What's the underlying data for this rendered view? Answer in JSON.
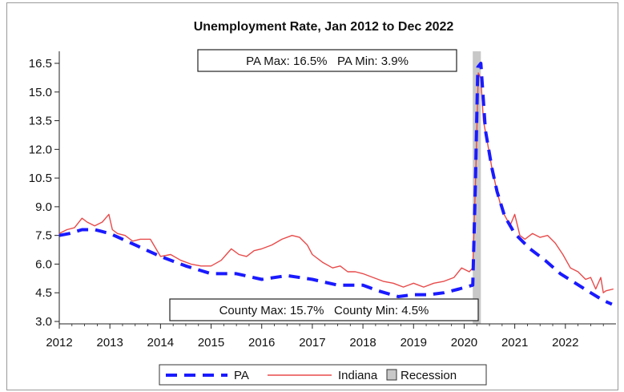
{
  "chart_data": {
    "type": "line",
    "title": "Unemployment Rate, Jan 2012 to Dec 2022",
    "xlabel": "",
    "ylabel": "",
    "xlim": [
      2012,
      2022.95
    ],
    "ylim": [
      3.0,
      16.5
    ],
    "x_ticks": [
      "2012",
      "2013",
      "2014",
      "2015",
      "2016",
      "2017",
      "2018",
      "2019",
      "2020",
      "2021",
      "2022"
    ],
    "y_ticks": [
      "3.0",
      "4.5",
      "6.0",
      "7.5",
      "9.0",
      "10.5",
      "12.0",
      "13.5",
      "15.0",
      "16.5"
    ],
    "grid": false,
    "legend_position": "bottom",
    "series": [
      {
        "name": "PA",
        "style": "dashed",
        "color": "#1a1aff",
        "x": [
          2012.0,
          2012.2,
          2012.45,
          2012.7,
          2013.0,
          2013.5,
          2014.0,
          2014.5,
          2015.0,
          2015.5,
          2016.0,
          2016.5,
          2017.0,
          2017.5,
          2018.0,
          2018.3,
          2018.7,
          2019.0,
          2019.3,
          2019.6,
          2019.9,
          2020.17,
          2020.22,
          2020.27,
          2020.33,
          2020.42,
          2020.55,
          2020.65,
          2020.8,
          2021.0,
          2021.3,
          2021.6,
          2021.9,
          2022.2,
          2022.5,
          2022.75,
          2022.92
        ],
        "y": [
          7.5,
          7.6,
          7.8,
          7.8,
          7.6,
          7.0,
          6.4,
          5.9,
          5.5,
          5.5,
          5.2,
          5.4,
          5.2,
          4.9,
          4.9,
          4.6,
          4.3,
          4.4,
          4.4,
          4.5,
          4.7,
          4.9,
          10.0,
          16.3,
          16.5,
          13.0,
          11.0,
          9.8,
          8.5,
          7.6,
          6.8,
          6.2,
          5.5,
          5.0,
          4.5,
          4.1,
          3.9
        ]
      },
      {
        "name": "Indiana",
        "style": "solid",
        "color": "#e84a4a",
        "x": [
          2012.0,
          2012.15,
          2012.3,
          2012.45,
          2012.55,
          2012.7,
          2012.85,
          2012.98,
          2013.05,
          2013.15,
          2013.3,
          2013.45,
          2013.6,
          2013.8,
          2014.0,
          2014.2,
          2014.4,
          2014.6,
          2014.8,
          2015.0,
          2015.2,
          2015.3,
          2015.4,
          2015.55,
          2015.7,
          2015.85,
          2016.0,
          2016.2,
          2016.4,
          2016.6,
          2016.75,
          2016.9,
          2017.0,
          2017.2,
          2017.4,
          2017.55,
          2017.7,
          2017.85,
          2018.0,
          2018.2,
          2018.4,
          2018.6,
          2018.8,
          2019.0,
          2019.2,
          2019.4,
          2019.6,
          2019.8,
          2019.95,
          2020.1,
          2020.17,
          2020.23,
          2020.28,
          2020.33,
          2020.38,
          2020.45,
          2020.55,
          2020.65,
          2020.75,
          2020.85,
          2020.92,
          2021.0,
          2021.1,
          2021.2,
          2021.35,
          2021.5,
          2021.65,
          2021.8,
          2021.95,
          2022.1,
          2022.25,
          2022.4,
          2022.5,
          2022.6,
          2022.7,
          2022.75,
          2022.8,
          2022.95
        ],
        "y": [
          7.6,
          7.8,
          7.9,
          8.4,
          8.2,
          8.0,
          8.2,
          8.6,
          7.8,
          7.6,
          7.5,
          7.2,
          7.3,
          7.3,
          6.4,
          6.5,
          6.2,
          6.0,
          5.9,
          5.9,
          6.2,
          6.5,
          6.8,
          6.5,
          6.4,
          6.7,
          6.8,
          7.0,
          7.3,
          7.5,
          7.4,
          7.0,
          6.5,
          6.1,
          5.8,
          5.9,
          5.6,
          5.6,
          5.5,
          5.3,
          5.1,
          5.0,
          4.8,
          5.0,
          4.8,
          5.0,
          5.1,
          5.3,
          5.8,
          5.6,
          5.8,
          10.8,
          16.0,
          15.7,
          13.5,
          12.5,
          11.0,
          9.8,
          8.8,
          8.3,
          8.1,
          8.6,
          7.5,
          7.3,
          7.6,
          7.4,
          7.5,
          7.1,
          6.5,
          5.8,
          5.6,
          5.2,
          5.3,
          4.7,
          5.3,
          4.5,
          4.6,
          4.7
        ]
      }
    ],
    "recession": {
      "label": "Recession",
      "start": 2020.17,
      "end": 2020.33,
      "color": "#c8c8c8"
    },
    "annotations": {
      "top": "PA Max: 16.5%   PA Min: 3.9%",
      "bottom": "County Max: 15.7%   County Min: 4.5%"
    }
  }
}
